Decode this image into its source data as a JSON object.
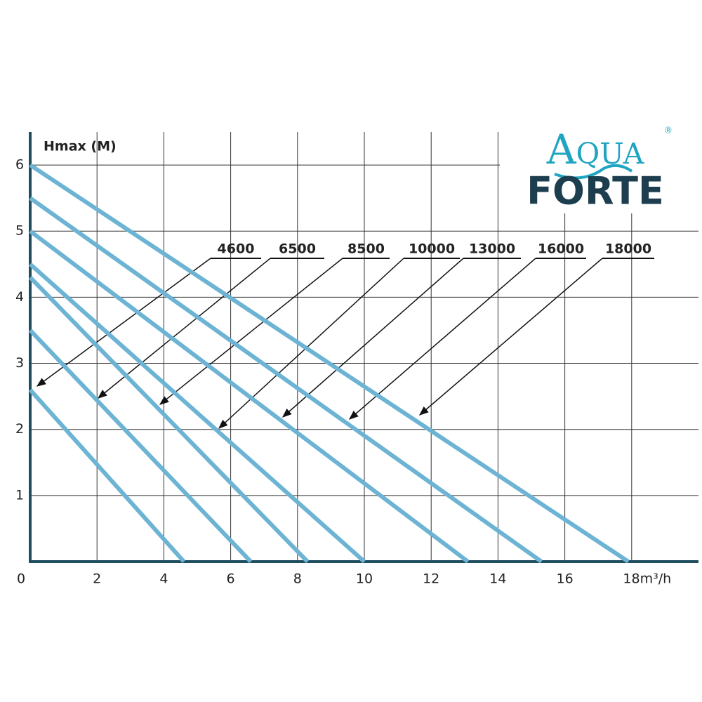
{
  "chart_data": {
    "type": "line",
    "y_label": "Hmax (M)",
    "xlim": [
      0,
      20
    ],
    "ylim": [
      0,
      6.5
    ],
    "xticks": [
      0,
      2,
      4,
      6,
      8,
      10,
      12,
      14,
      16,
      {
        "value": 18,
        "label": "18m³/h"
      }
    ],
    "yticks": [
      1,
      2,
      3,
      4,
      5,
      6
    ],
    "grid": true,
    "series": [
      {
        "name": "4600",
        "color": "#6db4d4",
        "x": [
          0,
          4.6
        ],
        "values": [
          2.6,
          0
        ]
      },
      {
        "name": "6500",
        "color": "#6db4d4",
        "x": [
          0,
          6.6
        ],
        "values": [
          3.5,
          0
        ]
      },
      {
        "name": "8500",
        "color": "#6db4d4",
        "x": [
          0,
          8.3
        ],
        "values": [
          4.3,
          0
        ]
      },
      {
        "name": "10000",
        "color": "#6db4d4",
        "x": [
          0,
          10
        ],
        "values": [
          4.5,
          0
        ]
      },
      {
        "name": "13000",
        "color": "#6db4d4",
        "x": [
          0,
          13.1
        ],
        "values": [
          5.0,
          0
        ]
      },
      {
        "name": "16000",
        "color": "#6db4d4",
        "x": [
          0,
          15.3
        ],
        "values": [
          5.5,
          0
        ]
      },
      {
        "name": "18000",
        "color": "#6db4d4",
        "x": [
          0,
          17.9
        ],
        "values": [
          6.0,
          0
        ]
      }
    ]
  },
  "logo": {
    "top": "Aqua",
    "bottom": "FORTE",
    "mark": "®"
  }
}
